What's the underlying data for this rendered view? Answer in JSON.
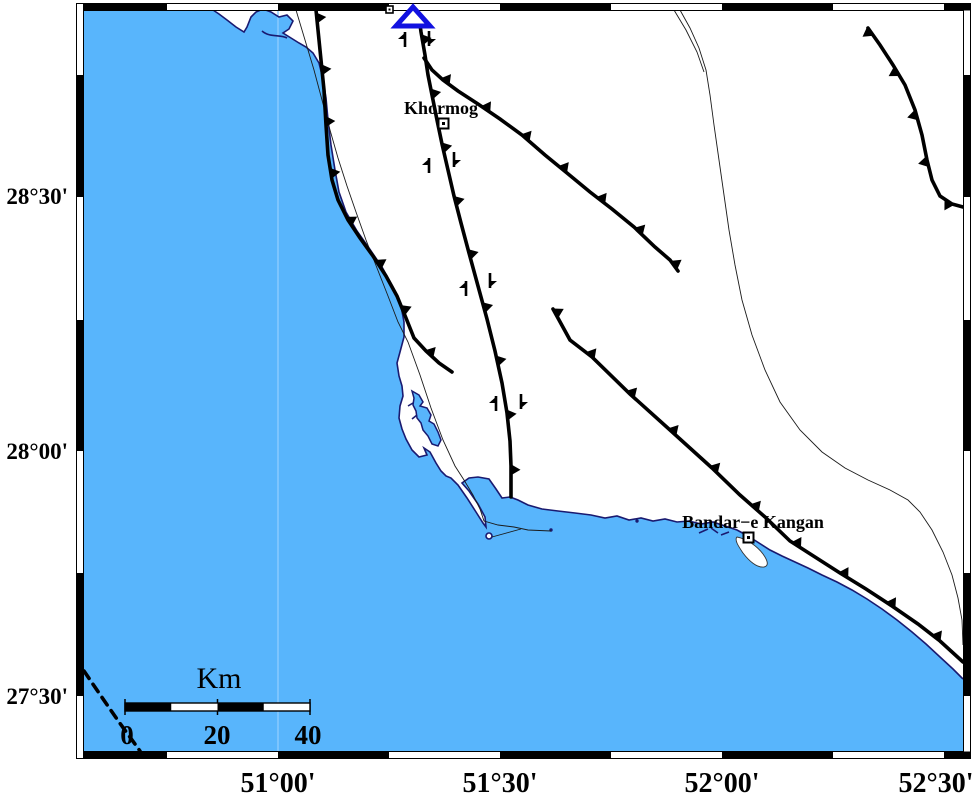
{
  "figure": {
    "type": "tectonic-coastal-map",
    "region": "Persian Gulf coast, Zagros area"
  },
  "axes": {
    "lat": [
      "28°30'",
      "28°00'",
      "27°30'"
    ],
    "lon": [
      "51°00'",
      "51°30'",
      "52°00'",
      "52°30'"
    ]
  },
  "places": {
    "khormog": "Khormog",
    "kangan": "Bandar−e Kangan"
  },
  "scalebar": {
    "title": "Km",
    "labels": [
      "0",
      "20",
      "40"
    ]
  },
  "markers": {
    "station": "blue-triangle-station",
    "towns": "square-with-center-dot"
  },
  "map_symbols": {
    "thrust_fault": "thick black line with filled triangular teeth",
    "inferred_fault": "dashed black line",
    "strike_slip_indicator": "paired half-arrows along main fault",
    "road_or_contour": "thin black line"
  },
  "colors": {
    "sea": "#58b5fc",
    "coastline": "#1a1a70",
    "fault": "#000000",
    "station_blue": "#1111e0",
    "land": "#ffffff",
    "gridline": "#8dccff"
  }
}
